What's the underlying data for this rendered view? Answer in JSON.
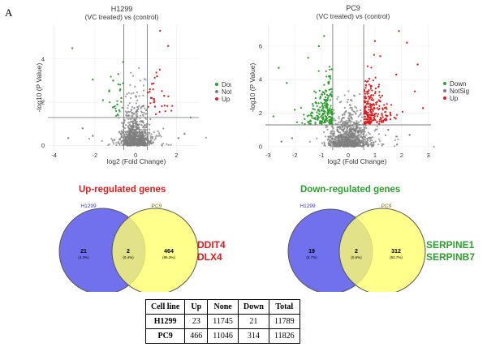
{
  "panel_label": "A",
  "chart_data": [
    {
      "type": "scatter",
      "title": "H1299",
      "subtitle": "(VC treated) vs (control)",
      "xlabel": "log2 (Fold Change)",
      "ylabel": "-log10 (P Value)",
      "xlim": [
        -4.3,
        3.1
      ],
      "ylim": [
        -0.2,
        5.6
      ],
      "xticks": [
        -4,
        -2,
        0,
        2
      ],
      "yticks": [
        0,
        2,
        4
      ],
      "thresholds": {
        "x": [
          -0.58,
          0.58
        ],
        "y": 1.3
      },
      "legend": [
        "Down",
        "NotSig",
        "Up"
      ],
      "legend_position": "right",
      "colors": {
        "Down": "#2ca02c",
        "NotSig": "#7f7f7f",
        "Up": "#e31a1c"
      },
      "counts": {
        "Down": 21,
        "NotSig": 11745,
        "Up": 23
      },
      "outliers": {
        "Up": [
          [
            0.9,
            2.0
          ],
          [
            1.4,
            2.3
          ],
          [
            0.7,
            2.6
          ],
          [
            1.05,
            3.2
          ],
          [
            0.8,
            2.85
          ],
          [
            0.6,
            2.45
          ],
          [
            1.6,
            4.6
          ],
          [
            1.2,
            5.3
          ],
          [
            0.75,
            2.2
          ],
          [
            0.95,
            1.8
          ]
        ],
        "Down": [
          [
            -1.6,
            2.1
          ],
          [
            -0.9,
            1.9
          ],
          [
            -1.1,
            3.0
          ],
          [
            -0.75,
            2.6
          ],
          [
            -1.3,
            2.5
          ],
          [
            -0.85,
            3.3
          ],
          [
            -3.1,
            4.5
          ],
          [
            -2.1,
            3.05
          ],
          [
            -0.7,
            2.2
          ]
        ],
        "NotSig": [
          [
            -3.3,
            0.35
          ],
          [
            -2.1,
            0.45
          ],
          [
            2.1,
            0.35
          ],
          [
            2.7,
            1.3
          ],
          [
            2.4,
            0.55
          ],
          [
            -2.6,
            0.8
          ]
        ]
      }
    },
    {
      "type": "scatter",
      "title": "PC9",
      "subtitle": "(VC treated) vs (control)",
      "xlabel": "log2 (Fold Change)",
      "ylabel": "-log10 (P Value)",
      "xlim": [
        -3.1,
        3.1
      ],
      "ylim": [
        -0.2,
        7.3
      ],
      "xticks": [
        -3,
        -2,
        -1,
        0,
        1,
        2,
        3
      ],
      "yticks": [
        0,
        2,
        4,
        6
      ],
      "thresholds": {
        "x": [
          -0.58,
          0.58
        ],
        "y": 1.3
      },
      "legend": [
        "Down",
        "NotSig",
        "Up"
      ],
      "legend_position": "right",
      "colors": {
        "Down": "#2ca02c",
        "NotSig": "#7f7f7f",
        "Up": "#e31a1c"
      },
      "counts": {
        "Down": 314,
        "NotSig": 11046,
        "Up": 466
      },
      "outliers": {
        "Up": [
          [
            1.9,
            6.9
          ],
          [
            2.2,
            6.2
          ],
          [
            1.2,
            5.4
          ],
          [
            2.5,
            3.3
          ],
          [
            1.8,
            4.3
          ],
          [
            2.6,
            4.9
          ],
          [
            1.0,
            6.3
          ],
          [
            2.8,
            2.3
          ]
        ],
        "Down": [
          [
            -2.6,
            4.7
          ],
          [
            -1.5,
            5.3
          ],
          [
            -2.0,
            2.2
          ],
          [
            -1.1,
            6.0
          ],
          [
            -2.3,
            3.8
          ],
          [
            -0.9,
            6.6
          ],
          [
            -2.8,
            1.8
          ]
        ],
        "NotSig": [
          [
            -2.1,
            0.5
          ],
          [
            1.5,
            1.0
          ],
          [
            2.3,
            0.7
          ],
          [
            -2.5,
            0.3
          ]
        ]
      }
    },
    {
      "type": "venn",
      "heading": "Up-regulated genes",
      "set_labels": [
        "H1299",
        "PC9"
      ],
      "regions": [
        {
          "count": "21",
          "percent": "(4.3%)"
        },
        {
          "count": "2",
          "percent": "(0.4%)"
        },
        {
          "count": "464",
          "percent": "(95.3%)"
        }
      ],
      "shared_genes": [
        "DDIT4",
        "DLX4"
      ]
    },
    {
      "type": "venn",
      "heading": "Down-regulated genes",
      "set_labels": [
        "H1299",
        "PC9"
      ],
      "regions": [
        {
          "count": "19",
          "percent": "(5.7%)"
        },
        {
          "count": "2",
          "percent": "(0.6%)"
        },
        {
          "count": "312",
          "percent": "(93.7%)"
        }
      ],
      "shared_genes": [
        "SERPINE1",
        "SERPINB7"
      ]
    },
    {
      "type": "table",
      "columns": [
        "Cell line",
        "Up",
        "None",
        "Down",
        "Total"
      ],
      "rows": [
        [
          "H1299",
          "23",
          "11745",
          "21",
          "11789"
        ],
        [
          "PC9",
          "466",
          "11046",
          "314",
          "11826"
        ]
      ]
    }
  ]
}
